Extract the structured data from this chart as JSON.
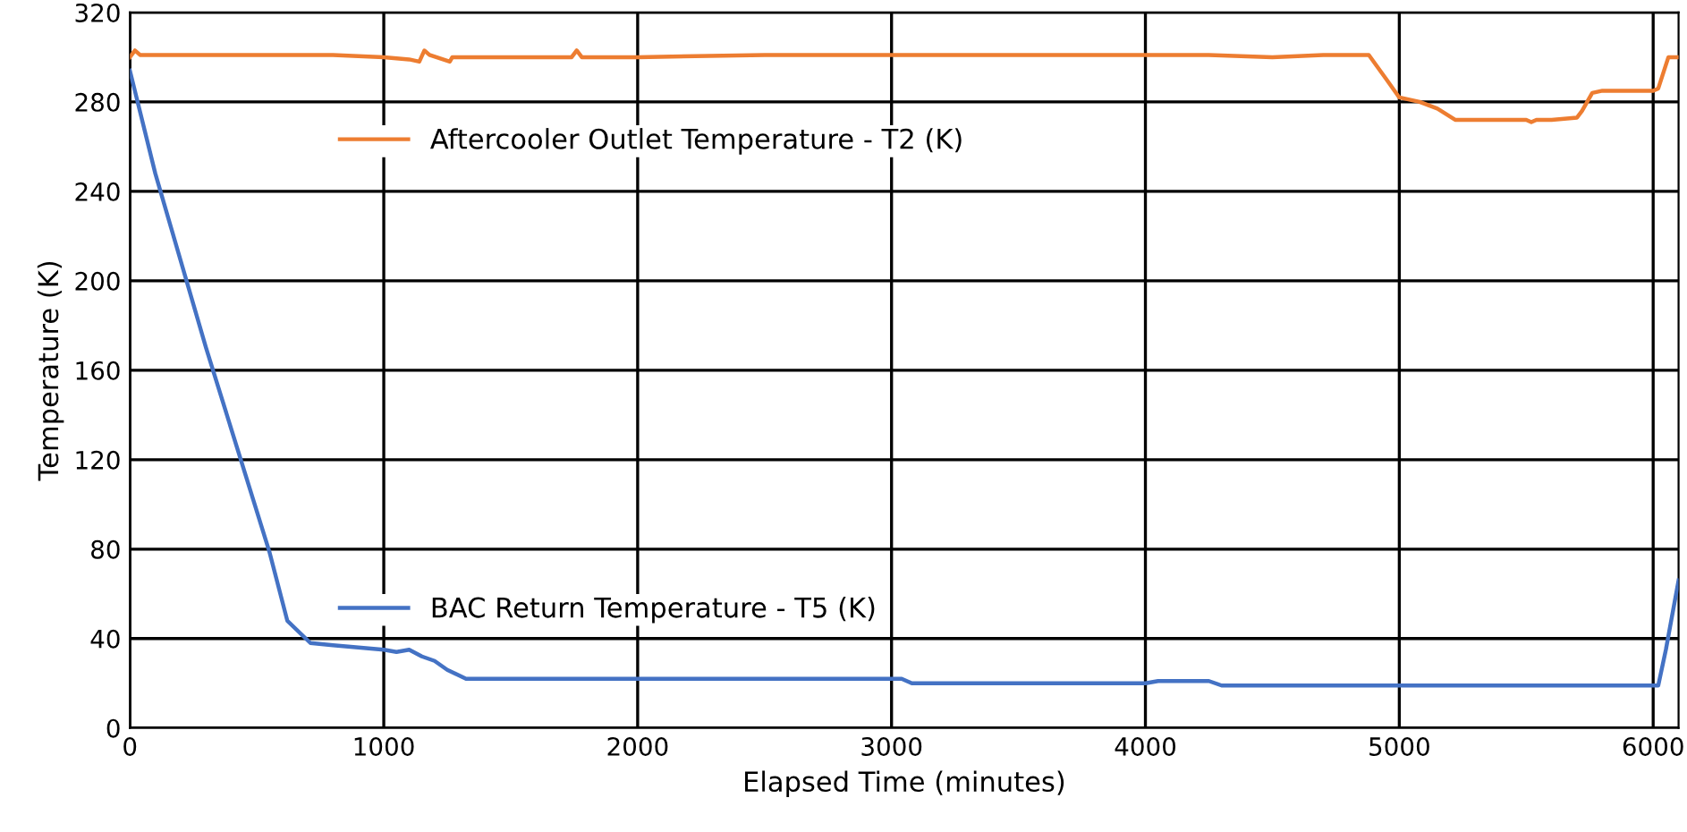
{
  "chart_data": {
    "type": "line",
    "xlabel": "Elapsed Time (minutes)",
    "ylabel": "Temperature (K)",
    "xlim": [
      0,
      6100
    ],
    "xticks": [
      0,
      1000,
      2000,
      3000,
      4000,
      5000,
      6000
    ],
    "ylim": [
      0,
      320
    ],
    "yticks": [
      0,
      40,
      80,
      120,
      160,
      200,
      240,
      280,
      320
    ],
    "grid": true,
    "line_style": "solid",
    "marker": "none",
    "series": [
      {
        "name": "Aftercooler Outlet Temperature - T2 (K)",
        "color": "#ed7d31",
        "x": [
          0,
          20,
          40,
          200,
          500,
          800,
          1000,
          1100,
          1140,
          1160,
          1180,
          1260,
          1270,
          1290,
          1500,
          1740,
          1760,
          1780,
          2000,
          2500,
          3000,
          3500,
          3800,
          4000,
          4250,
          4500,
          4700,
          4880,
          4950,
          5000,
          5080,
          5150,
          5220,
          5400,
          5500,
          5520,
          5540,
          5600,
          5700,
          5720,
          5760,
          5800,
          6000,
          6020,
          6060,
          6100
        ],
        "values": [
          300,
          303,
          301,
          301,
          301,
          301,
          300,
          299,
          298,
          303,
          301,
          298,
          300,
          300,
          300,
          300,
          303,
          300,
          300,
          301,
          301,
          301,
          301,
          301,
          301,
          300,
          301,
          301,
          290,
          282,
          280,
          277,
          272,
          272,
          272,
          271,
          272,
          272,
          273,
          276,
          284,
          285,
          285,
          286,
          300,
          300
        ]
      },
      {
        "name": "BAC Return Temperature - T5 (K)",
        "color": "#4472c4",
        "x": [
          0,
          100,
          300,
          549,
          620,
          711,
          800,
          900,
          1000,
          1050,
          1100,
          1150,
          1200,
          1250,
          1324,
          1500,
          2000,
          2500,
          3000,
          3040,
          3080,
          3500,
          4000,
          4050,
          4250,
          4300,
          5000,
          5500,
          6000,
          6020,
          6050,
          6100
        ],
        "values": [
          294,
          248,
          170,
          79,
          48,
          38,
          37,
          36,
          35,
          34,
          35,
          32,
          30,
          26,
          22,
          22,
          22,
          22,
          22,
          22,
          20,
          20,
          20,
          21,
          21,
          19,
          19,
          19,
          19,
          19,
          35,
          66
        ]
      }
    ],
    "legend": "left"
  }
}
